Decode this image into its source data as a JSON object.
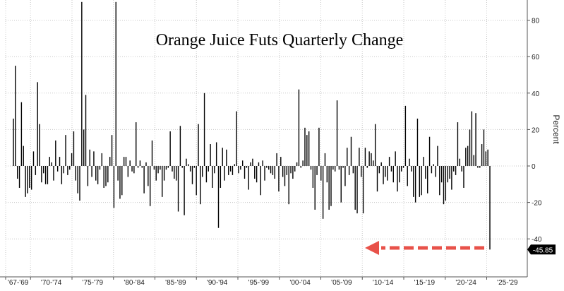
{
  "chart_data": {
    "type": "bar",
    "title": "Orange Juice Futs Quarterly Change",
    "ylabel": "Percent",
    "xlabel": "",
    "ylim": [
      -57,
      90
    ],
    "y_ticks": [
      80,
      60,
      40,
      20,
      0,
      -20,
      -40
    ],
    "x_tick_labels": [
      "'67-'69",
      "'70-'74",
      "'75-'79",
      "'80-'84",
      "'85-'89",
      "'90-'94",
      "'95-'99",
      "'00-'04",
      "'05-'09",
      "'10-'14",
      "'15-'19",
      "'20-'24",
      "'25-'29"
    ],
    "x_start_year": 1967,
    "x_end_year": 2029,
    "grid": true,
    "legend": "none",
    "bar_color": "#000000",
    "last_value_label": "-45.85",
    "callout_color": "#e8524a",
    "series": [
      {
        "values": [
          26,
          55,
          -7,
          -12,
          35,
          11,
          -17,
          -15,
          -12,
          -13,
          8,
          -5,
          46,
          23,
          -9,
          -4,
          -10,
          -10,
          5,
          2,
          -8,
          14,
          -3,
          5,
          -10,
          -4,
          17,
          -5,
          -2,
          7,
          19,
          -8,
          -15,
          -19,
          90,
          20,
          39,
          -11,
          9,
          -6,
          8,
          -8,
          -10,
          -2,
          7,
          -12,
          -11,
          -9,
          5,
          17,
          -23,
          90,
          -8,
          -18,
          -16,
          5,
          5,
          -6,
          3,
          -3,
          -4,
          24,
          -1,
          3,
          -1,
          -15,
          2,
          -11,
          -22,
          14,
          -2,
          -8,
          -4,
          -2,
          -17,
          -8,
          -2,
          -1,
          19,
          -3,
          -7,
          -8,
          -25,
          22,
          -1,
          -27,
          4,
          1,
          -3,
          -10,
          -1,
          -16,
          23,
          -21,
          -6,
          40,
          -9,
          -3,
          12,
          -12,
          -4,
          13,
          -34,
          -12,
          10,
          -8,
          9,
          -5,
          -3,
          -5,
          1,
          30,
          -4,
          -2,
          3,
          -7,
          -1,
          -13,
          2,
          4,
          -7,
          -9,
          2,
          -16,
          3,
          -8,
          -1,
          -2,
          -4,
          -5,
          -7,
          7,
          -14,
          5,
          -6,
          -11,
          -5,
          -21,
          -4,
          -7,
          -3,
          2,
          42,
          -1,
          3,
          21,
          17,
          19,
          -2,
          -12,
          -24,
          -5,
          21,
          -8,
          -29,
          7,
          -9,
          -24,
          -22,
          -2,
          -3,
          36,
          -2,
          -20,
          -1,
          -11,
          10,
          -5,
          16,
          -4,
          -24,
          -26,
          10,
          -6,
          -26,
          10,
          -1,
          8,
          7,
          3,
          23,
          -14,
          -4,
          2,
          -10,
          -6,
          -8,
          5,
          -3,
          -9,
          8,
          -14,
          -9,
          -3,
          -1,
          33,
          -11,
          4,
          -3,
          -17,
          -20,
          26,
          -17,
          -16,
          5,
          -7,
          -15,
          16,
          -4,
          1,
          -6,
          11,
          -16,
          -9,
          -21,
          -19,
          -9,
          -7,
          -13,
          -3,
          -5,
          24,
          4,
          -3,
          -12,
          10,
          11,
          20,
          30,
          6,
          29,
          -1,
          -1,
          12,
          20,
          8,
          9,
          -45.85
        ]
      }
    ]
  }
}
